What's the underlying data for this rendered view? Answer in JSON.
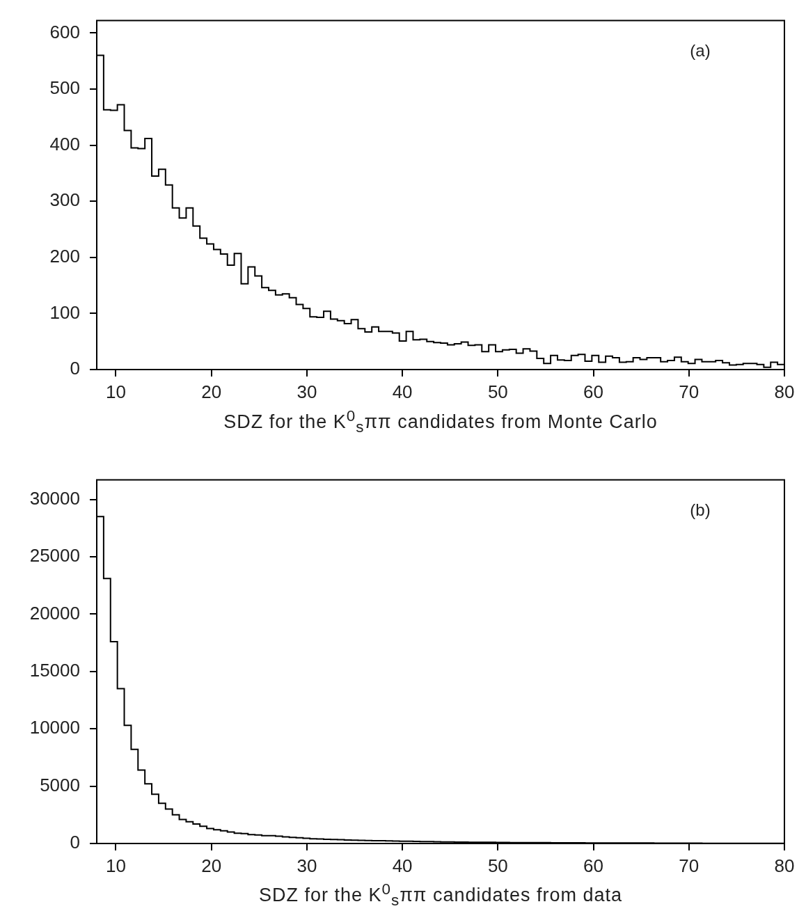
{
  "chart_data": [
    {
      "type": "histogram",
      "xlabel": "SDZ for the K$^{0}$$_{s}$ππ candidates from Monte Carlo",
      "annotations": [
        "(a)"
      ],
      "color": "#000000",
      "bins": [
        8,
        8.72,
        9.44,
        10.16,
        10.88,
        11.6,
        12.32,
        13.04,
        13.76,
        14.48,
        15.2,
        15.92,
        16.64,
        17.36,
        18.08,
        18.8,
        19.52,
        20.24,
        20.96,
        21.68,
        22.4,
        23.12,
        23.84,
        24.56,
        25.28,
        26,
        26.72,
        27.44,
        28.16,
        28.88,
        29.6,
        30.32,
        31.04,
        31.76,
        32.48,
        33.2,
        33.92,
        34.64,
        35.36,
        36.08,
        36.8,
        37.52,
        38.24,
        38.96,
        39.68,
        40.4,
        41.12,
        41.84,
        42.56,
        43.28,
        44,
        44.72,
        45.44,
        46.16,
        46.88,
        47.6,
        48.32,
        49.04,
        49.76,
        50.48,
        51.2,
        51.92,
        52.64,
        53.36,
        54.08,
        54.8,
        55.52,
        56.24,
        56.96,
        57.68,
        58.4,
        59.12,
        59.84,
        60.56,
        61.28,
        62,
        62.72,
        63.44,
        64.16,
        64.88,
        65.6,
        66.32,
        67.04,
        67.76,
        68.48,
        69.2,
        69.92,
        70.64,
        71.36,
        72.08,
        72.8,
        73.52,
        74.24,
        74.96,
        75.68,
        76.4,
        77.12,
        77.84,
        78.56,
        79.28,
        80
      ],
      "values": [
        560,
        463,
        462,
        472,
        426,
        395,
        394,
        412,
        345,
        357,
        329,
        288,
        270,
        288,
        256,
        234,
        224,
        214,
        206,
        186,
        207,
        153,
        183,
        167,
        146,
        141,
        133,
        135,
        128,
        116,
        109,
        94,
        93,
        104,
        90,
        87,
        82,
        89,
        73,
        67,
        76,
        68,
        68,
        65,
        51,
        68,
        53,
        54,
        50,
        48,
        47,
        44,
        46,
        49,
        43,
        44,
        32,
        44,
        32,
        35,
        36,
        29,
        37,
        33,
        20,
        11,
        25,
        17,
        16,
        25,
        27,
        15,
        25,
        13,
        24,
        21,
        13,
        14,
        21,
        18,
        21,
        21,
        14,
        16,
        22,
        14,
        11,
        18,
        14,
        14,
        16,
        12,
        8,
        9,
        11,
        11,
        9,
        4,
        13,
        9
      ],
      "xlim": [
        8,
        80
      ],
      "xticks": [
        10,
        20,
        30,
        40,
        50,
        60,
        70,
        80
      ],
      "ylim": [
        0,
        622
      ],
      "yticks": [
        0,
        100,
        200,
        300,
        400,
        500,
        600
      ]
    },
    {
      "type": "histogram",
      "xlabel": "SDZ for the K$^{0}$$_{s}$ππ candidates from data",
      "annotations": [
        "(b)"
      ],
      "color": "#000000",
      "bins": [
        8,
        8.72,
        9.44,
        10.16,
        10.88,
        11.6,
        12.32,
        13.04,
        13.76,
        14.48,
        15.2,
        15.92,
        16.64,
        17.36,
        18.08,
        18.8,
        19.52,
        20.24,
        20.96,
        21.68,
        22.4,
        23.12,
        23.84,
        24.56,
        25.28,
        26,
        26.72,
        27.44,
        28.16,
        28.88,
        29.6,
        30.32,
        31.04,
        31.76,
        32.48,
        33.2,
        33.92,
        34.64,
        35.36,
        36.08,
        36.8,
        37.52,
        38.24,
        38.96,
        39.68,
        40.4,
        41.12,
        41.84,
        42.56,
        43.28,
        44,
        44.72,
        45.44,
        46.16,
        46.88,
        47.6,
        48.32,
        49.04,
        49.76,
        50.48,
        51.2,
        51.92,
        52.64,
        53.36,
        54.08,
        54.8,
        55.52,
        56.24,
        56.96,
        57.68,
        58.4,
        59.12,
        59.84,
        60.56,
        61.28,
        62,
        62.72,
        63.44,
        64.16,
        64.88,
        65.6,
        66.32,
        67.04,
        67.76,
        68.48,
        69.2,
        69.92,
        70.64,
        71.36,
        72.08,
        72.8,
        73.52,
        74.24,
        74.96,
        75.68,
        76.4,
        77.12,
        77.84,
        78.56,
        79.28,
        80
      ],
      "values": [
        28500,
        23100,
        17600,
        13500,
        10300,
        8200,
        6400,
        5200,
        4300,
        3500,
        3000,
        2500,
        2100,
        1900,
        1700,
        1500,
        1300,
        1200,
        1100,
        1000,
        900,
        860,
        780,
        740,
        690,
        690,
        630,
        570,
        530,
        500,
        460,
        410,
        390,
        370,
        350,
        330,
        310,
        290,
        270,
        260,
        250,
        240,
        230,
        210,
        200,
        190,
        180,
        170,
        160,
        150,
        140,
        130,
        120,
        120,
        110,
        110,
        100,
        100,
        90,
        90,
        80,
        80,
        80,
        70,
        70,
        70,
        60,
        60,
        60,
        60,
        60,
        50,
        50,
        50,
        50,
        50,
        40,
        40,
        40,
        40,
        40,
        30,
        30,
        30,
        30,
        30,
        30,
        30,
        20,
        20,
        20,
        20,
        20,
        20,
        20,
        20,
        20,
        20,
        20,
        10
      ],
      "xlim": [
        8,
        80
      ],
      "xticks": [
        10,
        20,
        30,
        40,
        50,
        60,
        70,
        80
      ],
      "ylim": [
        0,
        31700
      ],
      "yticks": [
        0,
        5000,
        10000,
        15000,
        20000,
        25000,
        30000
      ]
    }
  ]
}
